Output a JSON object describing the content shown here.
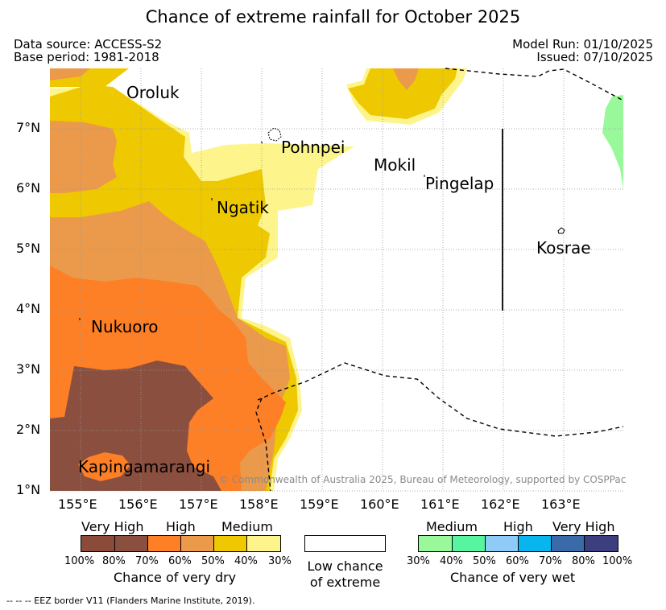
{
  "title": "Chance of extreme rainfall for October 2025",
  "meta": {
    "data_source": "Data source: ACCESS-S2",
    "base_period": "Base period: 1981-2018",
    "model_run": "Model Run: 01/10/2025",
    "issued": "Issued: 07/10/2025"
  },
  "map": {
    "lon_ticks": [
      "155°E",
      "156°E",
      "157°E",
      "158°E",
      "159°E",
      "160°E",
      "161°E",
      "162°E",
      "163°E"
    ],
    "lat_ticks": [
      "7°N",
      "6°N",
      "5°N",
      "4°N",
      "3°N",
      "2°N",
      "1°N"
    ],
    "places": {
      "oroluk": "Oroluk",
      "pohnpei": "Pohnpei",
      "mokil": "Mokil",
      "pingelap": "Pingelap",
      "ngatik": "Ngatik",
      "kosrae": "Kosrae",
      "nukuoro": "Nukuoro",
      "kapingamarangi": "Kapingamarangi"
    },
    "copyright": "© Commonwealth of Australia 2025, Bureau of Meteorology, supported by COSPPac"
  },
  "colors": {
    "dry_very_high": [
      "#8b4a3a",
      "#8a4f3e"
    ],
    "dry_high": [
      "#fd7f26",
      "#ea9a4a"
    ],
    "dry_medium": [
      "#eec800",
      "#fdf58c"
    ],
    "wet_medium": [
      "#99f899",
      "#57f5a0"
    ],
    "wet_high": [
      "#8ecbf7",
      "#08b5ef"
    ],
    "wet_very_high": [
      "#3a6aa8",
      "#3d3e7e"
    ]
  },
  "legend": {
    "dry": {
      "very_high": "Very High",
      "high": "High",
      "medium": "Medium",
      "pcts": [
        "100%",
        "80%",
        "70%",
        "60%",
        "50%",
        "40%",
        "30%"
      ],
      "caption": "Chance of very dry"
    },
    "low": {
      "line1": "Low chance",
      "line2": "of extreme"
    },
    "wet": {
      "medium": "Medium",
      "high": "High",
      "very_high": "Very High",
      "pcts": [
        "30%",
        "40%",
        "50%",
        "60%",
        "70%",
        "80%",
        "100%"
      ],
      "caption": "Chance of very wet"
    }
  },
  "footer": "-- -- -- EEZ border V11 (Flanders Marine Institute, 2019)."
}
